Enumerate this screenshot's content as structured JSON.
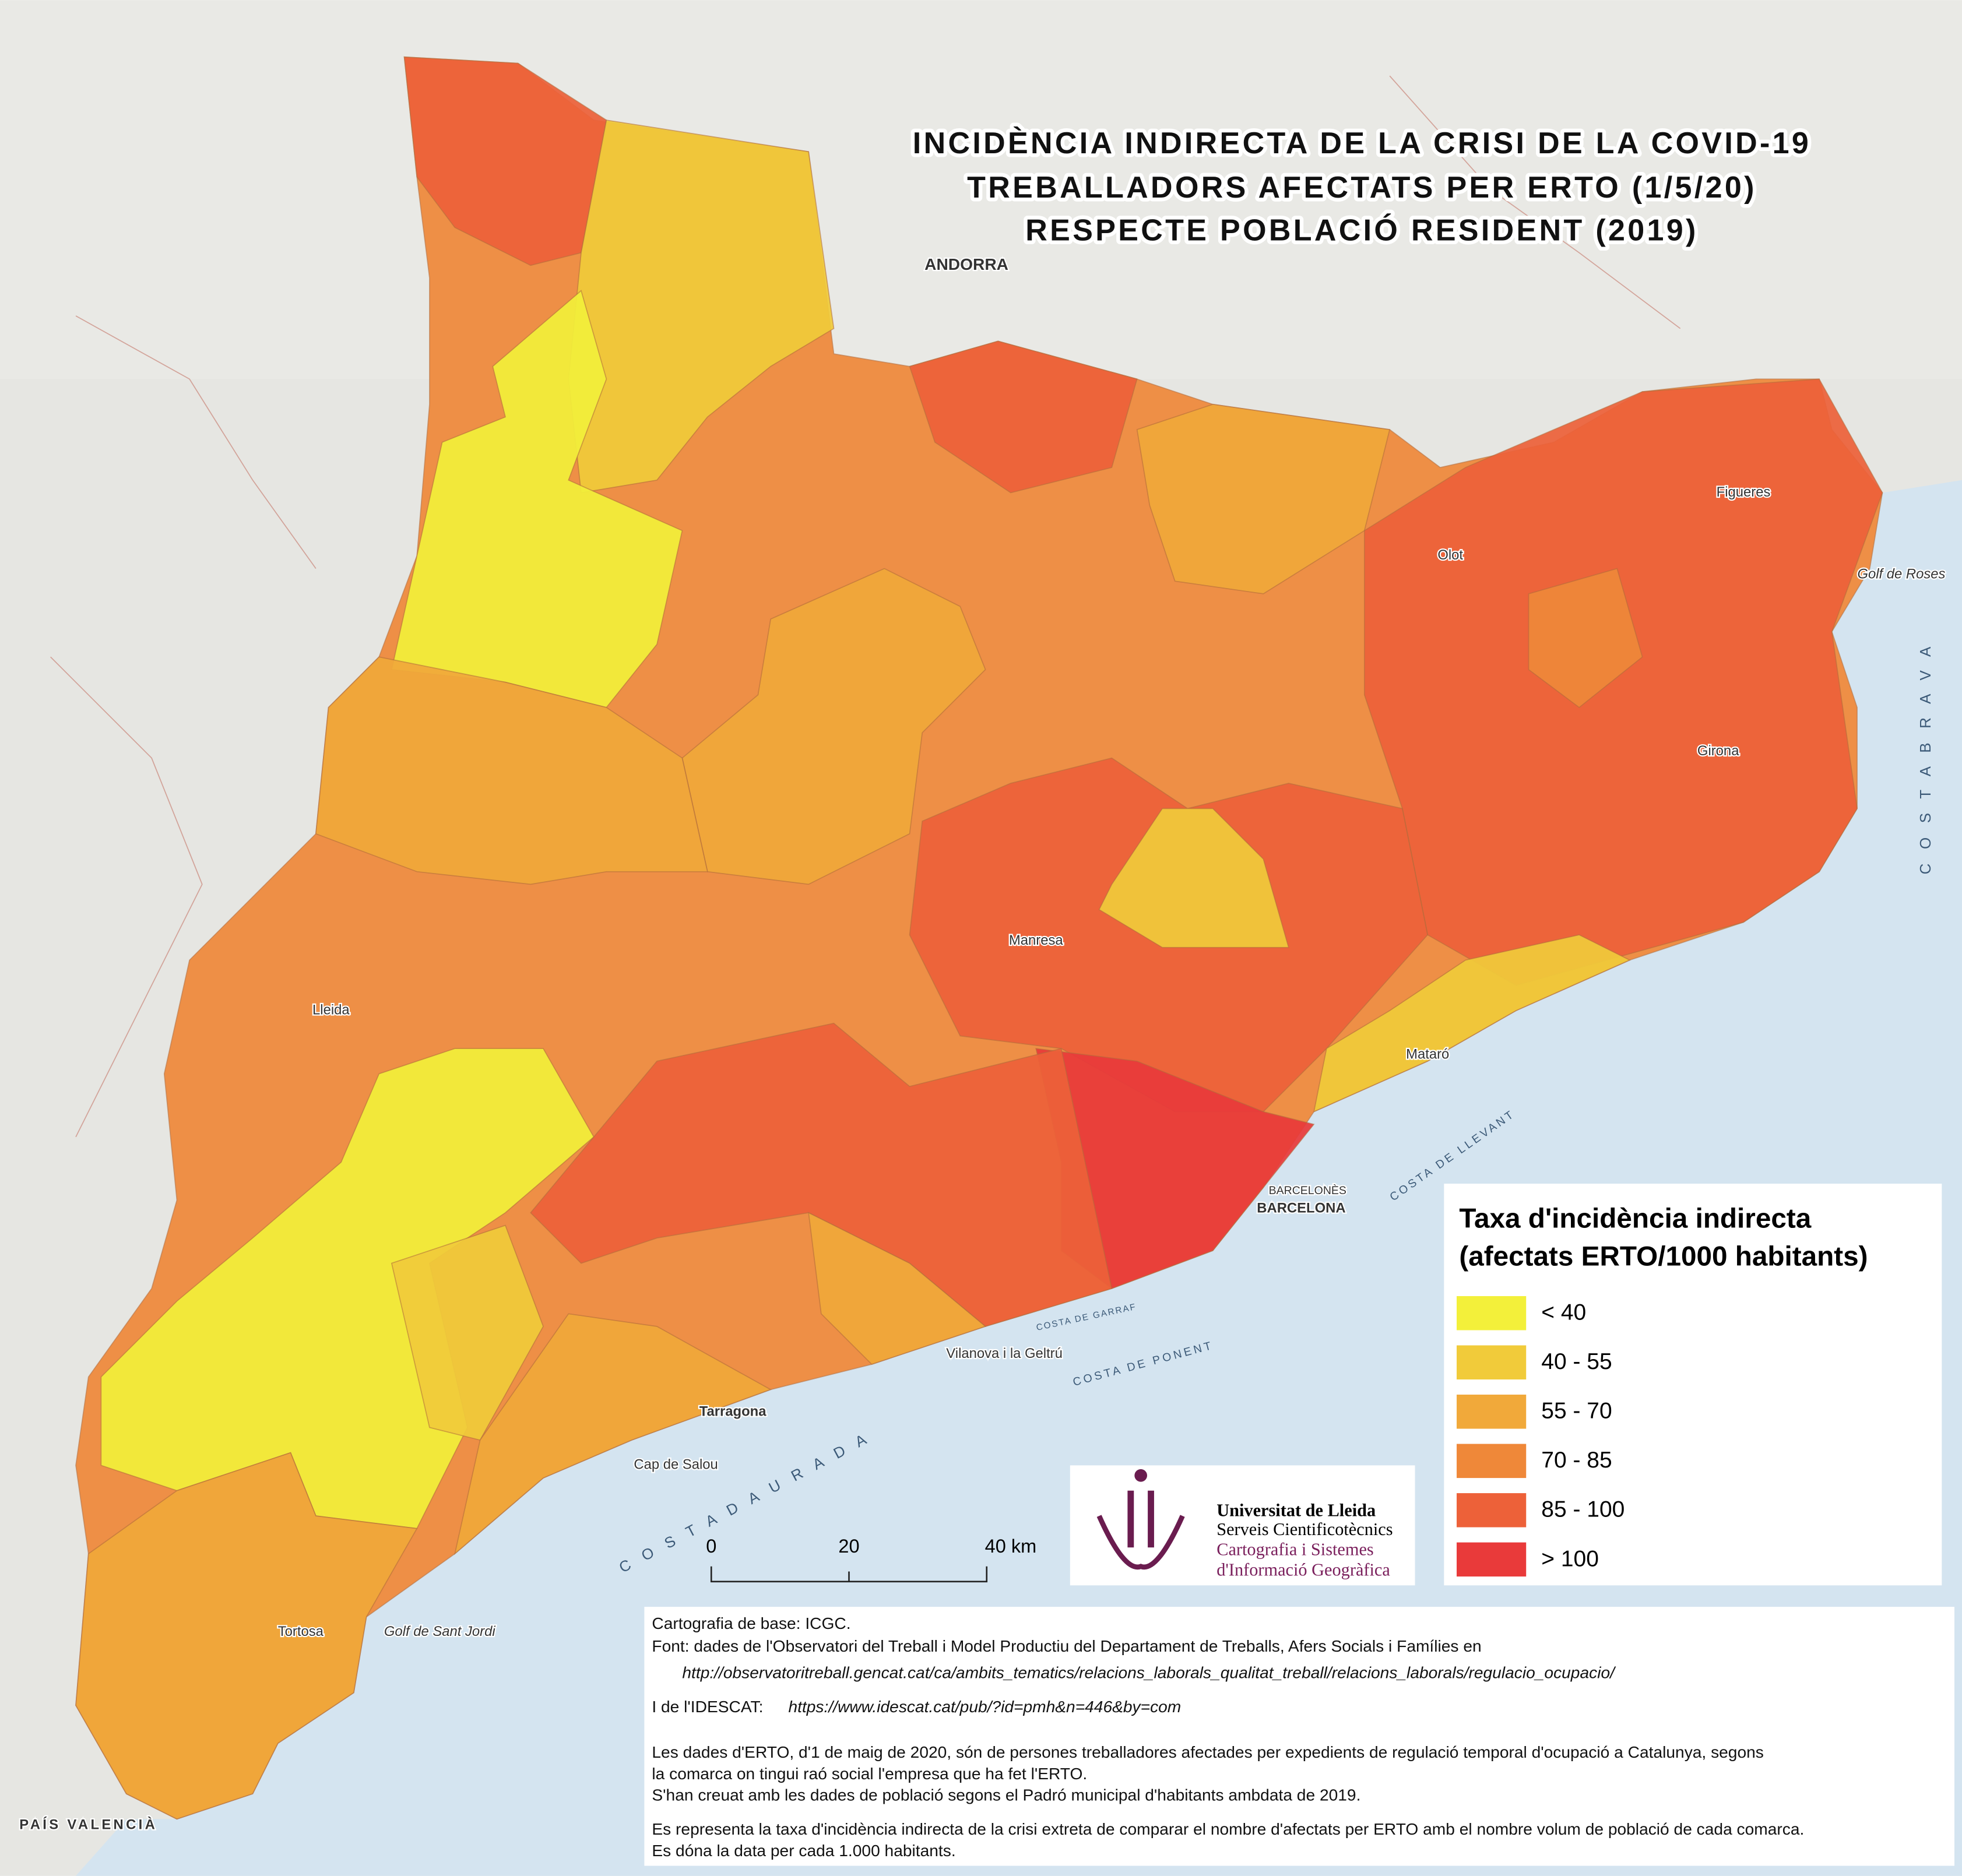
{
  "title": {
    "lines": [
      "INCIDÈNCIA INDIRECTA DE LA CRISI DE LA COVID-19",
      "TREBALLADORS AFECTATS PER ERTO (1/5/20)",
      "RESPECTE POBLACIÓ RESIDENT (2019)"
    ]
  },
  "legend": {
    "title": [
      "Taxa d'incidència indirecta",
      "(afectats ERTO/1000 habitants)"
    ],
    "items": [
      {
        "label": "< 40",
        "color": "#f3f03a"
      },
      {
        "label": "40 - 55",
        "color": "#f1cb3a"
      },
      {
        "label": "55 - 70",
        "color": "#f1a93a"
      },
      {
        "label": "70 - 85",
        "color": "#ef8839"
      },
      {
        "label": "85 - 100",
        "color": "#ed6139"
      },
      {
        "label": "> 100",
        "color": "#e93a3a"
      }
    ]
  },
  "scale": {
    "labels": [
      "0",
      "20",
      "40 km"
    ]
  },
  "institution": {
    "name": "Universitat de Lleida",
    "unit": "Serveis Cientificotècnics",
    "group": [
      "Cartografia i Sistemes",
      "d'Informació Geogràfica"
    ]
  },
  "notes": {
    "base": "Cartografia de base: ICGC.",
    "source": "Font: dades de l'Observatori del Treball i Model Productiu del Departament de Treballs, Afers Socials i Famílies en",
    "source_url": "http://observatoritreball.gencat.cat/ca/ambits_tematics/relacions_laborals_qualitat_treball/relacions_laborals/regulacio_ocupacio/",
    "idescat": "I de l'IDESCAT:",
    "idescat_url": "https://www.idescat.cat/pub/?id=pmh&n=446&by=com",
    "paragraph1": [
      "Les dades d'ERTO, d'1 de maig de 2020, són de persones treballadores afectades per expedients de regulació temporal d'ocupació a Catalunya, segons",
      "la comarca on tingui raó social l'empresa que ha fet l'ERTO.",
      "S'han creuat amb les dades de població segons el Padró municipal d'habitants ambdata de 2019."
    ],
    "paragraph2": [
      "Es representa la taxa d'incidència indirecta de la crisi extreta de comparar el nombre d'afectats per ERTO amb el nombre volum de població de cada comarca.",
      "Es dóna la data per cada 1.000 habitants."
    ]
  },
  "places": {
    "andorra": "ANDORRA",
    "barcelones": "BARCELONÈS",
    "barcelona": "BARCELONA",
    "tarragona": "Tarragona",
    "lleida": "Lleida",
    "girona": "Girona",
    "manresa": "Manresa",
    "mataro": "Mataró",
    "figueres": "Figueres",
    "olot": "Olot",
    "tortosa": "Tortosa",
    "vilanova": "Vilanova i la Geltrú",
    "salou": "Cap de Salou",
    "roses": "Golf de Roses",
    "sant_jordi": "Golf de Sant Jordi",
    "costa_brava": "C O S T A   B R A V A",
    "costa_daurada": "C O S T A   D A U R A D A",
    "costa_llevant": "COSTA DE LLEVANT",
    "costa_ponent": "COSTA DE PONENT",
    "costa_garraf": "COSTA DE GARRAF",
    "valencia": "PAÍS VALENCIÀ"
  }
}
